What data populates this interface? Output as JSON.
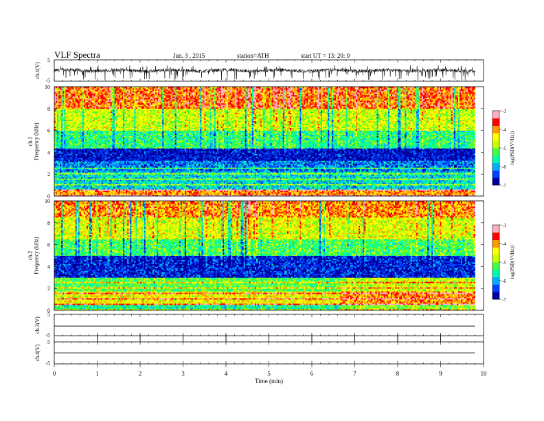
{
  "header": {
    "title": "VLF  Spectra",
    "date": "Jun. 3  , 2015",
    "station": "station=ATH",
    "start": "start  UT  =    13: 20: 0"
  },
  "chart_data": [
    {
      "panel": "ch1-waveform",
      "type": "line",
      "ylabel": "ch.1(V)",
      "ylim": [
        -5,
        5
      ],
      "yticks": [
        "5",
        "-5"
      ],
      "xlim": [
        0,
        10
      ],
      "xlabel": "",
      "grid": false,
      "data_extent_min": 9.8,
      "description_of_signal": "noisy waveform around 0 V, amplitude ~1 V with spikes to about -4.5 V"
    },
    {
      "panel": "ch1-spectrogram",
      "type": "heatmap",
      "ylabel": "ch.1\nFrequency  (kHz)",
      "ylabel_lines": [
        "ch.1",
        "Frequency  (kHz)"
      ],
      "ylim": [
        0,
        10
      ],
      "yticks": [
        "0",
        "2",
        "4",
        "6",
        "8",
        "10"
      ],
      "xlim": [
        0,
        10
      ],
      "data_extent_min": 9.8,
      "colorbar": {
        "label": "log(PSD(V²/Hz))",
        "range": [
          -7,
          -3
        ],
        "ticks": [
          "-3",
          "-4",
          "-5",
          "-6",
          "-7"
        ]
      },
      "bands": [
        {
          "f_from": 0.0,
          "f_to": 0.6,
          "log_psd": -4.0
        },
        {
          "f_from": 0.6,
          "f_to": 2.2,
          "log_psd": -5.8
        },
        {
          "f_from": 2.2,
          "f_to": 3.2,
          "log_psd": -6.2
        },
        {
          "f_from": 3.2,
          "f_to": 4.4,
          "log_psd": -6.7
        },
        {
          "f_from": 4.4,
          "f_to": 6.0,
          "log_psd": -5.4
        },
        {
          "f_from": 6.0,
          "f_to": 8.0,
          "log_psd": -4.7
        },
        {
          "f_from": 8.0,
          "f_to": 10.0,
          "log_psd": -3.8
        }
      ]
    },
    {
      "panel": "ch2-spectrogram",
      "type": "heatmap",
      "ylabel": "ch.2\nFrequency  (kHz)",
      "ylabel_lines": [
        "ch.2",
        "Frequency  (kHz)"
      ],
      "ylim": [
        0,
        10
      ],
      "yticks": [
        "0",
        "2",
        "4",
        "6",
        "8",
        "10"
      ],
      "xlim": [
        0,
        10
      ],
      "data_extent_min": 9.8,
      "colorbar": {
        "label": "log(PSD(V²/Hz))",
        "range": [
          -7,
          -3
        ],
        "ticks": [
          "-3",
          "-4",
          "-5",
          "-6",
          "-7"
        ]
      },
      "bands": [
        {
          "f_from": 0.0,
          "f_to": 0.5,
          "log_psd": -5.5
        },
        {
          "f_from": 0.5,
          "f_to": 1.8,
          "log_psd": -4.5
        },
        {
          "f_from": 1.8,
          "f_to": 3.0,
          "log_psd": -5.2
        },
        {
          "f_from": 3.0,
          "f_to": 5.0,
          "log_psd": -6.6
        },
        {
          "f_from": 5.0,
          "f_to": 6.5,
          "log_psd": -5.3
        },
        {
          "f_from": 6.5,
          "f_to": 8.5,
          "log_psd": -4.6
        },
        {
          "f_from": 8.5,
          "f_to": 10.0,
          "log_psd": -4.0
        }
      ],
      "change_at_min": 6.65
    },
    {
      "panel": "ch3-waveform",
      "type": "line",
      "ylabel": "ch.3(V)",
      "ylim": [
        -5,
        5
      ],
      "yticks": [
        "5",
        "-5"
      ],
      "xlim": [
        0,
        10
      ],
      "data_extent_min": 9.8,
      "value": -0.5
    },
    {
      "panel": "ch4-waveform",
      "type": "line",
      "ylabel": "ch.4(V)",
      "ylim": [
        -5,
        5
      ],
      "yticks": [
        "5",
        "-5"
      ],
      "xlim": [
        0,
        10
      ],
      "data_extent_min": 9.8,
      "value": 0.0,
      "xlabel": "Time  (min)",
      "xticks": [
        "0",
        "1",
        "2",
        "3",
        "4",
        "5",
        "6",
        "7",
        "8",
        "9",
        "10"
      ]
    }
  ],
  "colors": {
    "colormap": [
      "#000000",
      "#0000a0",
      "#0040ff",
      "#00b0ff",
      "#00ffaa",
      "#40ff40",
      "#c8ff00",
      "#ffff00",
      "#ff9a00",
      "#ff0000",
      "#ffb0c0",
      "#ffffff"
    ],
    "axis": "#000000",
    "trace": "#000000"
  }
}
